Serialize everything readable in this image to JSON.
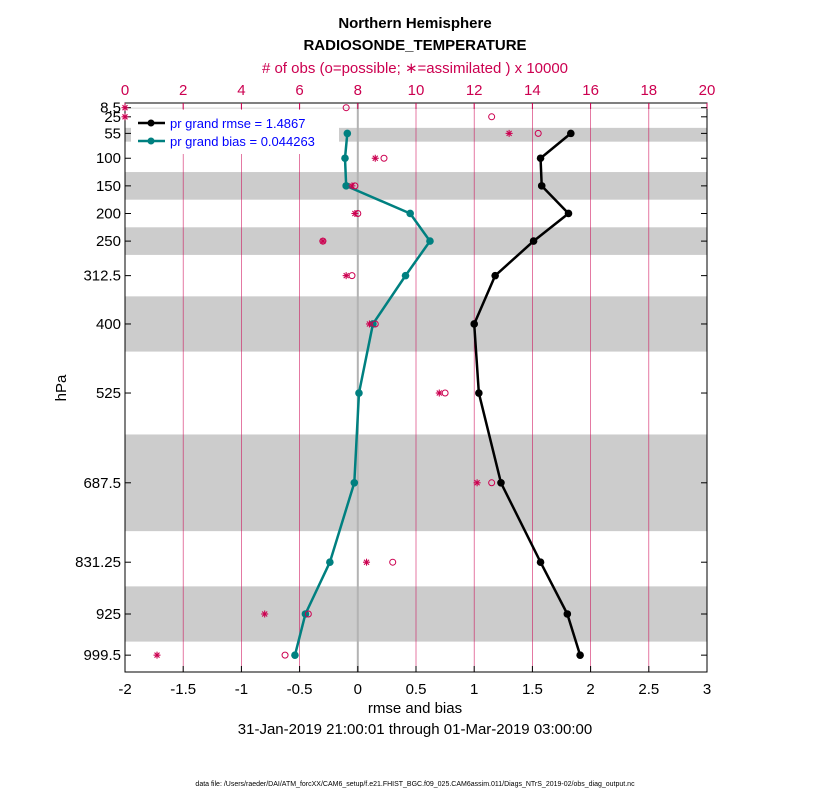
{
  "chart_data": {
    "type": "line",
    "title": "Northern Hemisphere",
    "subtitle": "RADIOSONDE_TEMPERATURE",
    "top_axis_label": "# of obs (o=possible; ∗=assimilated ) x 10000",
    "xlabel": "rmse and bias",
    "ylabel": "hPa",
    "date_range": "31-Jan-2019 21:00:01 through 01-Mar-2019 03:00:00",
    "footnote": "data file: /Users/raeder/DAI/ATM_forcXX/CAM6_setup/f.e21.FHIST_BGC.f09_025.CAM6assim.011/Diags_NTrS_2019-02/obs_diag_output.nc",
    "xlim": [
      -2,
      3
    ],
    "x_ticks": [
      "-2",
      "-1.5",
      "-1",
      "-0.5",
      "0",
      "0.5",
      "1",
      "1.5",
      "2",
      "2.5",
      "3"
    ],
    "top_xlim": [
      0,
      20
    ],
    "top_ticks": [
      "0",
      "2",
      "4",
      "6",
      "8",
      "10",
      "12",
      "14",
      "16",
      "18",
      "20"
    ],
    "levels": [
      "8.5",
      "25",
      "55",
      "100",
      "150",
      "200",
      "250",
      "312.5",
      "400",
      "525",
      "687.5",
      "831.25",
      "925",
      "999.5"
    ],
    "shaded_bands": [
      [
        8.5,
        10
      ],
      [
        45,
        70
      ],
      [
        125,
        175
      ],
      [
        225,
        275
      ],
      [
        350,
        450
      ],
      [
        600,
        775
      ],
      [
        875,
        975
      ]
    ],
    "series": [
      {
        "name": "rmse",
        "legend": "pr grand rmse = 1.4867",
        "color": "#000000",
        "points": [
          [
            1.83,
            55
          ],
          [
            1.57,
            100
          ],
          [
            1.58,
            150
          ],
          [
            1.81,
            200
          ],
          [
            1.51,
            250
          ],
          [
            1.18,
            312.5
          ],
          [
            1.0,
            400
          ],
          [
            1.04,
            525
          ],
          [
            1.23,
            687.5
          ],
          [
            1.57,
            831.25
          ],
          [
            1.8,
            925
          ],
          [
            1.91,
            999.5
          ]
        ]
      },
      {
        "name": "bias",
        "legend": "pr grand bias = 0.044263",
        "color": "#008080",
        "points": [
          [
            -0.09,
            55
          ],
          [
            -0.11,
            100
          ],
          [
            -0.1,
            150
          ],
          [
            0.45,
            200
          ],
          [
            0.62,
            250
          ],
          [
            0.41,
            312.5
          ],
          [
            0.13,
            400
          ],
          [
            0.01,
            525
          ],
          [
            -0.03,
            687.5
          ],
          [
            -0.24,
            831.25
          ],
          [
            -0.45,
            925
          ],
          [
            -0.54,
            999.5
          ]
        ]
      }
    ],
    "obs_possible": [
      [
        7.6,
        8.5
      ],
      [
        12.6,
        25
      ],
      [
        14.2,
        55
      ],
      [
        8.9,
        100
      ],
      [
        7.9,
        150
      ],
      [
        8.0,
        200
      ],
      [
        6.8,
        250
      ],
      [
        7.8,
        312.5
      ],
      [
        8.6,
        400
      ],
      [
        11.0,
        525
      ],
      [
        12.6,
        687.5
      ],
      [
        9.2,
        831.25
      ],
      [
        6.3,
        925
      ],
      [
        5.5,
        999.5
      ]
    ],
    "obs_assimilated": [
      [
        0.0,
        8.5
      ],
      [
        0.0,
        25
      ],
      [
        13.2,
        55
      ],
      [
        8.6,
        100
      ],
      [
        7.8,
        150
      ],
      [
        7.9,
        200
      ],
      [
        6.8,
        250
      ],
      [
        7.6,
        312.5
      ],
      [
        8.4,
        400
      ],
      [
        10.8,
        525
      ],
      [
        12.1,
        687.5
      ],
      [
        8.3,
        831.25
      ],
      [
        4.8,
        925
      ],
      [
        1.1,
        999.5
      ]
    ],
    "colors": {
      "obs": "#cc0050",
      "grid": "#cc0050",
      "legend_text": "#0000ff",
      "band": "#cccccc",
      "zero_line": "#b3b3b3"
    }
  }
}
